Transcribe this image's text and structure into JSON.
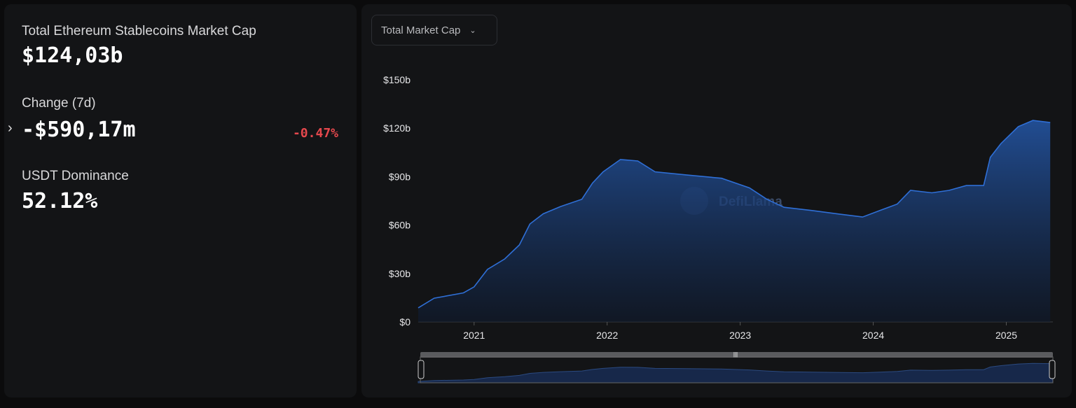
{
  "summary": {
    "total_label": "Total Ethereum Stablecoins Market Cap",
    "total_value": "$124,03b",
    "change_label": "Change (7d)",
    "change_value": "-$590,17m",
    "change_pct": "-0.47%",
    "dominance_label": "USDT Dominance",
    "dominance_value": "52.12%"
  },
  "dropdown": {
    "selected": "Total Market Cap",
    "icon": "chevron-down-icon"
  },
  "watermark": "DefiLlama",
  "colors": {
    "line": "#2f6fd6",
    "negative": "#e5484d",
    "background": "#131416"
  },
  "chart_data": {
    "type": "area",
    "xlabel": "",
    "ylabel": "",
    "ylim": [
      0,
      150
    ],
    "yticks": [
      {
        "v": 0,
        "label": "$0"
      },
      {
        "v": 30,
        "label": "$30b"
      },
      {
        "v": 60,
        "label": "$60b"
      },
      {
        "v": 90,
        "label": "$90b"
      },
      {
        "v": 120,
        "label": "$120b"
      },
      {
        "v": 150,
        "label": "$150b"
      }
    ],
    "xticks": [
      {
        "v": 2021,
        "label": "2021"
      },
      {
        "v": 2022,
        "label": "2022"
      },
      {
        "v": 2023,
        "label": "2023"
      },
      {
        "v": 2024,
        "label": "2024"
      },
      {
        "v": 2025,
        "label": "2025"
      }
    ],
    "xlim": [
      2020.58,
      2025.35
    ],
    "grid": false,
    "series": [
      {
        "x": [
          2020.58,
          2020.7,
          2020.92,
          2021.0,
          2021.1,
          2021.23,
          2021.34,
          2021.42,
          2021.52,
          2021.65,
          2021.81,
          2021.89,
          2021.97,
          2022.1,
          2022.23,
          2022.36,
          2022.6,
          2022.86,
          2023.07,
          2023.2,
          2023.33,
          2023.54,
          2023.75,
          2023.92,
          2024.05,
          2024.18,
          2024.28,
          2024.44,
          2024.57,
          2024.7,
          2024.83,
          2024.88,
          2024.96,
          2025.09,
          2025.2,
          2025.33
        ],
        "y": [
          8.7,
          14.7,
          18,
          21.7,
          32.5,
          39,
          47.7,
          60.7,
          67,
          71.5,
          76,
          86,
          93,
          100.6,
          99.7,
          93,
          91,
          89,
          83,
          76,
          71,
          69,
          66.7,
          65,
          69,
          73,
          81.5,
          80,
          81.5,
          84.5,
          84.5,
          102,
          110.5,
          121,
          124.8,
          123.5
        ]
      }
    ]
  }
}
